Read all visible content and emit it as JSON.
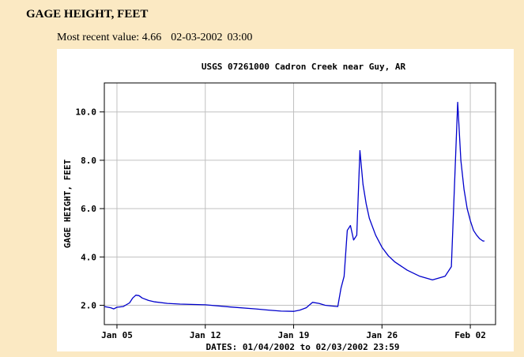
{
  "header": {
    "title": "GAGE HEIGHT, FEET",
    "recent_label": "Most recent value:",
    "recent_value": "4.66",
    "recent_date": "02-03-2002",
    "recent_time": "03:00"
  },
  "chart_data": {
    "type": "line",
    "title": "USGS 07261000 Cadron Creek near Guy, AR",
    "ylabel": "GAGE HEIGHT, FEET",
    "xlabel": "DATES: 01/04/2002 to 02/03/2002 23:59",
    "xlim": [
      "2002-01-04T00:00",
      "2002-02-03T23:59"
    ],
    "ylim": [
      1.2,
      11.2
    ],
    "yticks": [
      2.0,
      4.0,
      6.0,
      8.0,
      10.0
    ],
    "ytick_labels": [
      "2.0",
      "4.0",
      "6.0",
      "8.0",
      "10.0"
    ],
    "xticks": [
      "2002-01-05",
      "2002-01-12",
      "2002-01-19",
      "2002-01-26",
      "2002-02-02"
    ],
    "xtick_labels": [
      "Jan 05",
      "Jan 12",
      "Jan 19",
      "Jan 26",
      "Feb 02"
    ],
    "grid": true,
    "line_color": "#0000cc",
    "series": [
      {
        "x": [
          "2002-01-04T00:00",
          "2002-01-04T12:00",
          "2002-01-04T18:00",
          "2002-01-05T00:00",
          "2002-01-05T12:00",
          "2002-01-06T00:00",
          "2002-01-06T06:00",
          "2002-01-06T12:00",
          "2002-01-06T18:00",
          "2002-01-07T00:00",
          "2002-01-07T12:00",
          "2002-01-08T00:00",
          "2002-01-09T00:00",
          "2002-01-10T00:00",
          "2002-01-12T00:00",
          "2002-01-14T00:00",
          "2002-01-16T00:00",
          "2002-01-17T00:00",
          "2002-01-18T00:00",
          "2002-01-19T00:00",
          "2002-01-19T12:00",
          "2002-01-20T00:00",
          "2002-01-20T12:00",
          "2002-01-21T00:00",
          "2002-01-21T12:00",
          "2002-01-22T00:00",
          "2002-01-22T12:00",
          "2002-01-22T18:00",
          "2002-01-23T00:00",
          "2002-01-23T06:00",
          "2002-01-23T12:00",
          "2002-01-23T18:00",
          "2002-01-24T00:00",
          "2002-01-24T06:00",
          "2002-01-24T12:00",
          "2002-01-24T18:00",
          "2002-01-25T00:00",
          "2002-01-25T12:00",
          "2002-01-26T00:00",
          "2002-01-26T12:00",
          "2002-01-27T00:00",
          "2002-01-28T00:00",
          "2002-01-29T00:00",
          "2002-01-30T00:00",
          "2002-01-31T00:00",
          "2002-01-31T12:00",
          "2002-01-31T18:00",
          "2002-02-01T00:00",
          "2002-02-01T06:00",
          "2002-02-01T12:00",
          "2002-02-01T18:00",
          "2002-02-02T00:00",
          "2002-02-02T06:00",
          "2002-02-02T12:00",
          "2002-02-02T18:00",
          "2002-02-03T00:00",
          "2002-02-03T03:00"
        ],
        "y": [
          1.95,
          1.9,
          1.85,
          1.92,
          1.95,
          2.1,
          2.3,
          2.42,
          2.4,
          2.3,
          2.2,
          2.14,
          2.08,
          2.05,
          2.02,
          1.93,
          1.85,
          1.8,
          1.76,
          1.75,
          1.8,
          1.9,
          2.12,
          2.08,
          2.0,
          1.97,
          1.95,
          2.7,
          3.2,
          5.1,
          5.3,
          4.7,
          4.9,
          8.4,
          7.0,
          6.2,
          5.6,
          4.9,
          4.4,
          4.05,
          3.8,
          3.45,
          3.2,
          3.05,
          3.2,
          3.6,
          7.0,
          10.4,
          8.0,
          6.8,
          6.0,
          5.5,
          5.1,
          4.9,
          4.75,
          4.66,
          4.66
        ]
      }
    ]
  }
}
